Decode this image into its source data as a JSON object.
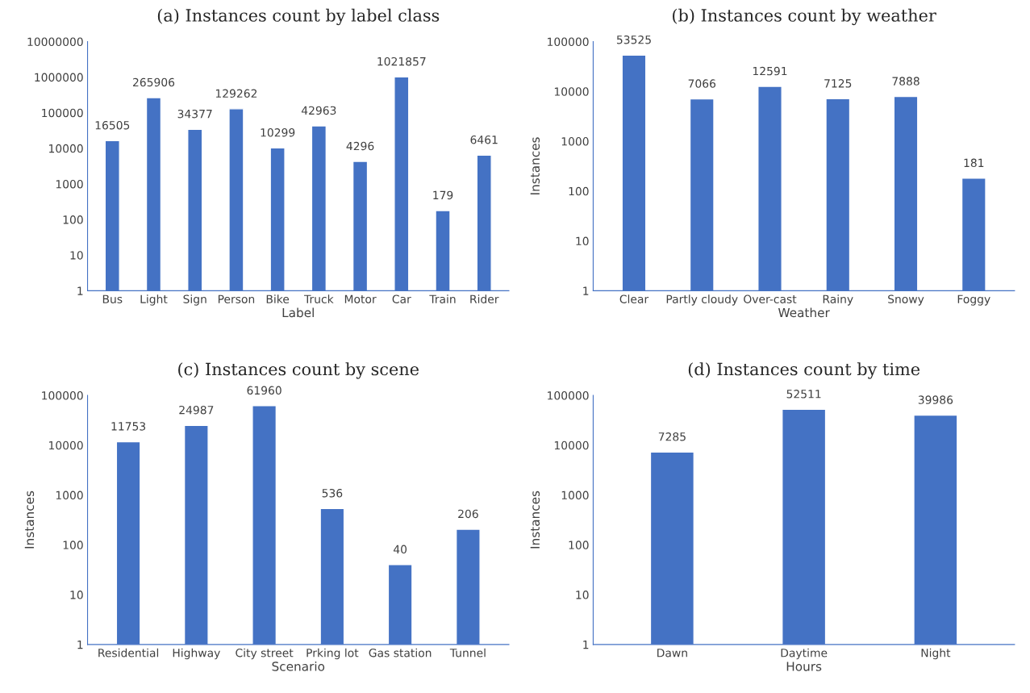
{
  "chart_data": [
    {
      "type": "bar",
      "title": "(a) Instances count by label class",
      "xlabel": "Label",
      "categories": [
        "Bus",
        "Light",
        "Sign",
        "Person",
        "Bike",
        "Truck",
        "Motor",
        "Car",
        "Train",
        "Rider"
      ],
      "values": [
        16505,
        265906,
        34377,
        129262,
        10299,
        42963,
        4296,
        1021857,
        179,
        6461
      ],
      "color": "#4472c4",
      "log": true,
      "ylim": [
        1,
        10000000
      ],
      "yticks": [
        1,
        10,
        100,
        1000,
        10000,
        100000,
        1000000,
        10000000
      ],
      "data_labels": true,
      "grid": false,
      "legend": false
    },
    {
      "type": "bar",
      "title": "(b) Instances count by weather",
      "xlabel": "Weather",
      "ylabel": "Instances",
      "categories": [
        "Clear",
        "Partly cloudy",
        "Over-cast",
        "Rainy",
        "Snowy",
        "Foggy"
      ],
      "values": [
        53525,
        7066,
        12591,
        7125,
        7888,
        181
      ],
      "color": "#4472c4",
      "log": true,
      "ylim": [
        1,
        100000
      ],
      "yticks": [
        1,
        10,
        100,
        1000,
        10000,
        100000
      ],
      "data_labels": true,
      "grid": false,
      "legend": false
    },
    {
      "type": "bar",
      "title": "(c) Instances count by scene",
      "xlabel": "Scenario",
      "ylabel": "Instances",
      "categories": [
        "Residential",
        "Highway",
        "City street",
        "Prking lot",
        "Gas station",
        "Tunnel"
      ],
      "values": [
        11753,
        24987,
        61960,
        536,
        40,
        206
      ],
      "color": "#4472c4",
      "log": true,
      "ylim": [
        1,
        100000
      ],
      "yticks": [
        1,
        10,
        100,
        1000,
        10000,
        100000
      ],
      "data_labels": true,
      "grid": false,
      "legend": false
    },
    {
      "type": "bar",
      "title": "(d) Instances count by time",
      "xlabel": "Hours",
      "ylabel": "Instances",
      "categories": [
        "Dawn",
        "Daytime",
        "Night"
      ],
      "values": [
        7285,
        52511,
        39986
      ],
      "color": "#4472c4",
      "log": true,
      "ylim": [
        1,
        100000
      ],
      "yticks": [
        1,
        10,
        100,
        1000,
        10000,
        100000
      ],
      "data_labels": true,
      "grid": false,
      "legend": false
    }
  ]
}
